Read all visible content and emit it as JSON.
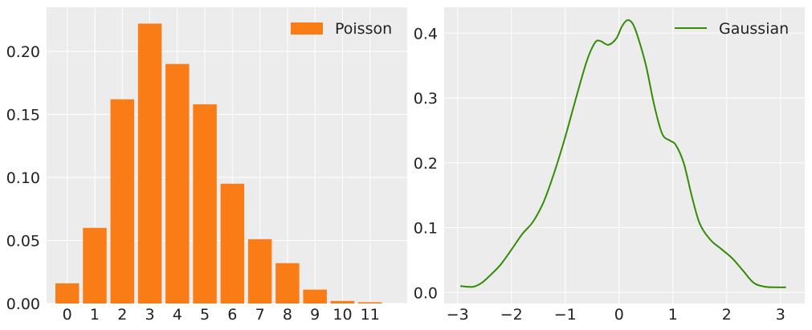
{
  "colors": {
    "panel_background": "#ececec",
    "grid": "#ffffff",
    "poisson_bar": "#fa7c17",
    "gaussian_line": "#328c06",
    "text": "#222222"
  },
  "chart_data": [
    {
      "type": "bar",
      "title": "",
      "xlabel": "",
      "ylabel": "",
      "categories": [
        "0",
        "1",
        "2",
        "3",
        "4",
        "5",
        "6",
        "7",
        "8",
        "9",
        "10",
        "11"
      ],
      "values": [
        0.016,
        0.06,
        0.162,
        0.222,
        0.19,
        0.158,
        0.095,
        0.051,
        0.032,
        0.011,
        0.002,
        0.001
      ],
      "series": [
        {
          "name": "Poisson"
        }
      ],
      "xlim": [
        -0.75,
        12.35
      ],
      "ylim": [
        0,
        0.235
      ],
      "yticks": [
        0.0,
        0.05,
        0.1,
        0.15,
        0.2
      ],
      "ytick_labels": [
        "0.00",
        "0.05",
        "0.10",
        "0.15",
        "0.20"
      ],
      "legend": "top-right",
      "grid": true
    },
    {
      "type": "line",
      "title": "",
      "xlabel": "",
      "ylabel": "",
      "series": [
        {
          "name": "Gaussian",
          "x": [
            -2.95,
            -2.85,
            -2.7,
            -2.55,
            -2.4,
            -2.2,
            -2.0,
            -1.8,
            -1.6,
            -1.4,
            -1.2,
            -1.0,
            -0.8,
            -0.6,
            -0.45,
            -0.35,
            -0.2,
            -0.05,
            0.05,
            0.15,
            0.25,
            0.35,
            0.5,
            0.65,
            0.8,
            0.95,
            1.05,
            1.2,
            1.35,
            1.5,
            1.7,
            1.9,
            2.1,
            2.3,
            2.5,
            2.7,
            2.9,
            3.1
          ],
          "y": [
            0.01,
            0.009,
            0.009,
            0.015,
            0.026,
            0.043,
            0.066,
            0.09,
            0.109,
            0.14,
            0.186,
            0.24,
            0.3,
            0.357,
            0.385,
            0.388,
            0.382,
            0.392,
            0.41,
            0.42,
            0.415,
            0.394,
            0.35,
            0.29,
            0.245,
            0.234,
            0.228,
            0.2,
            0.149,
            0.106,
            0.081,
            0.067,
            0.053,
            0.034,
            0.015,
            0.009,
            0.008,
            0.008
          ]
        }
      ],
      "xlim": [
        -3.25,
        3.45
      ],
      "ylim": [
        -0.017,
        0.44
      ],
      "xticks": [
        -3,
        -2,
        -1,
        0,
        1,
        2,
        3
      ],
      "xtick_labels": [
        "−3",
        "−2",
        "−1",
        "0",
        "1",
        "2",
        "3"
      ],
      "yticks": [
        0.0,
        0.1,
        0.2,
        0.3,
        0.4
      ],
      "ytick_labels": [
        "0.0",
        "0.1",
        "0.2",
        "0.3",
        "0.4"
      ],
      "legend": "top-right",
      "grid": true
    }
  ]
}
